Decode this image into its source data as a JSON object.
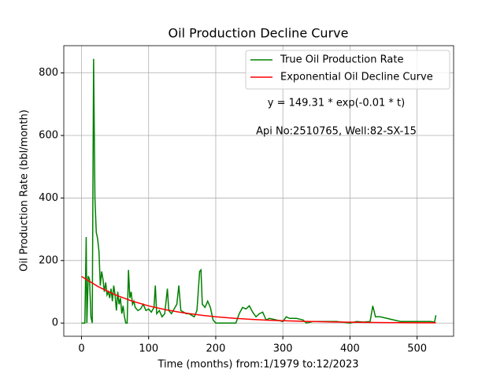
{
  "chart_data": {
    "type": "line",
    "title": "Oil Production Decline Curve",
    "xlabel": "Time (months) from:1/1979 to:12/2023",
    "ylabel": "Oil Production Rate (bbl/month)",
    "annotations": [
      "y = 149.31 * exp(-0.01 * t)",
      "Api No:2510765, Well:82-SX-15"
    ],
    "xlim": [
      -26.4,
      554.4
    ],
    "xticks": [
      0,
      100,
      200,
      300,
      400,
      500
    ],
    "ylim": [
      -42.25,
      887.25
    ],
    "yticks": [
      0,
      200,
      400,
      600,
      800
    ],
    "grid": true,
    "legend": "upper right",
    "series": [
      {
        "name": "True Oil Production Rate",
        "color": "#008000",
        "x": [
          0,
          5,
          7,
          8,
          10,
          12,
          14,
          16,
          18,
          20,
          22,
          24,
          26,
          28,
          30,
          32,
          34,
          36,
          38,
          40,
          42,
          44,
          46,
          48,
          50,
          52,
          54,
          56,
          58,
          60,
          62,
          64,
          66,
          68,
          70,
          72,
          74,
          76,
          78,
          80,
          84,
          88,
          92,
          96,
          100,
          104,
          108,
          110,
          112,
          116,
          120,
          124,
          128,
          130,
          134,
          138,
          142,
          145,
          148,
          152,
          156,
          160,
          164,
          168,
          172,
          176,
          178,
          180,
          184,
          188,
          192,
          196,
          200,
          210,
          220,
          230,
          235,
          240,
          245,
          250,
          255,
          260,
          265,
          270,
          275,
          280,
          290,
          300,
          305,
          310,
          320,
          330,
          335,
          345,
          360,
          380,
          400,
          410,
          420,
          430,
          434,
          438,
          445,
          455,
          465,
          475,
          490,
          500,
          510,
          520,
          526,
          528
        ],
        "values": [
          0,
          0,
          275,
          0,
          150,
          140,
          20,
          0,
          845,
          400,
          290,
          270,
          230,
          120,
          165,
          140,
          100,
          130,
          90,
          100,
          80,
          110,
          70,
          120,
          90,
          40,
          100,
          60,
          80,
          30,
          55,
          20,
          0,
          0,
          170,
          80,
          100,
          60,
          70,
          50,
          40,
          45,
          60,
          40,
          45,
          35,
          50,
          120,
          30,
          40,
          20,
          30,
          110,
          40,
          30,
          45,
          60,
          120,
          40,
          35,
          30,
          30,
          25,
          20,
          40,
          165,
          170,
          60,
          50,
          70,
          50,
          10,
          0,
          0,
          0,
          0,
          30,
          50,
          45,
          55,
          35,
          20,
          30,
          35,
          10,
          15,
          10,
          5,
          20,
          15,
          15,
          10,
          0,
          5,
          5,
          5,
          0,
          5,
          3,
          5,
          55,
          20,
          20,
          15,
          10,
          5,
          5,
          5,
          5,
          5,
          3,
          25
        ]
      },
      {
        "name": "Exponential Oil Decline Curve",
        "color": "#ff0000",
        "x": [
          0,
          25,
          50,
          75,
          100,
          125,
          150,
          175,
          200,
          225,
          250,
          275,
          300,
          325,
          350,
          375,
          400,
          425,
          450,
          475,
          500,
          528
        ],
        "values": [
          149.31,
          116.28,
          90.56,
          70.53,
          54.93,
          42.78,
          33.32,
          25.95,
          20.21,
          15.74,
          12.26,
          9.54,
          7.43,
          5.79,
          4.51,
          3.51,
          2.73,
          2.13,
          1.66,
          1.29,
          1.01,
          0.76
        ]
      }
    ]
  }
}
